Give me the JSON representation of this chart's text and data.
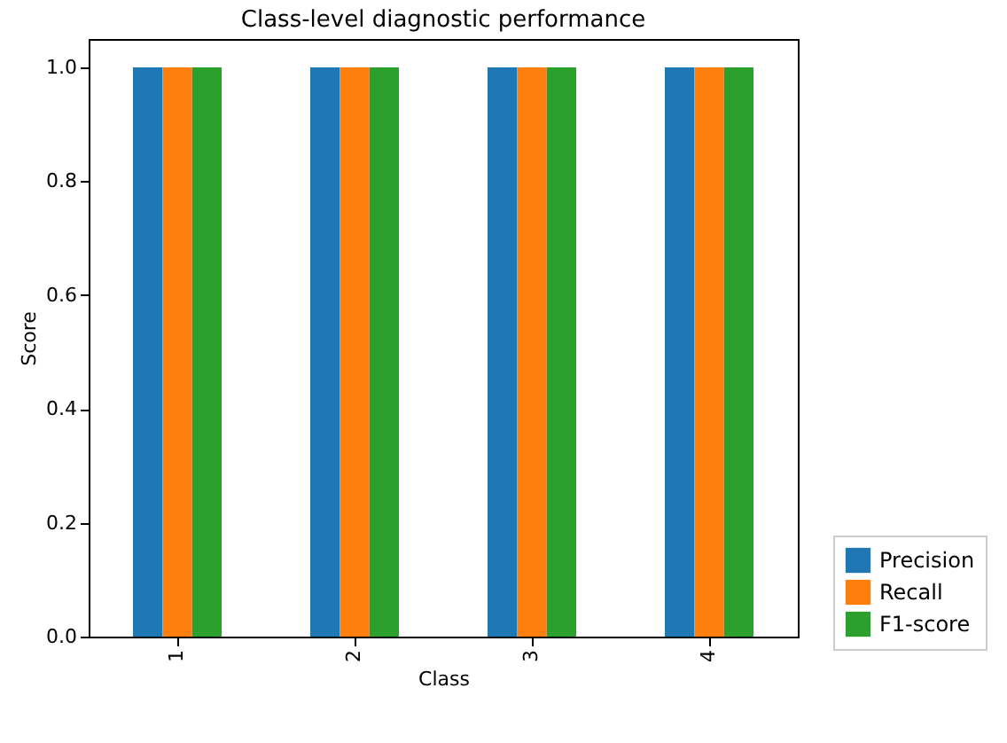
{
  "chart_data": {
    "type": "bar",
    "title": "Class-level diagnostic performance",
    "xlabel": "Class",
    "ylabel": "Score",
    "categories": [
      "1",
      "2",
      "3",
      "4"
    ],
    "series": [
      {
        "name": "Precision",
        "color": "#1f77b4",
        "values": [
          1.0,
          1.0,
          1.0,
          1.0
        ]
      },
      {
        "name": "Recall",
        "color": "#ff7f0e",
        "values": [
          1.0,
          1.0,
          1.0,
          1.0
        ]
      },
      {
        "name": "F1-score",
        "color": "#2ca02c",
        "values": [
          1.0,
          1.0,
          1.0,
          1.0
        ]
      }
    ],
    "ylim": [
      0,
      1.05
    ],
    "yticks": [
      {
        "value": 0,
        "label": "0.0"
      },
      0.2,
      0.4,
      0.6,
      0.8,
      {
        "value": 1,
        "label": "1.0"
      }
    ],
    "grid": false,
    "legend": "bottom right"
  }
}
